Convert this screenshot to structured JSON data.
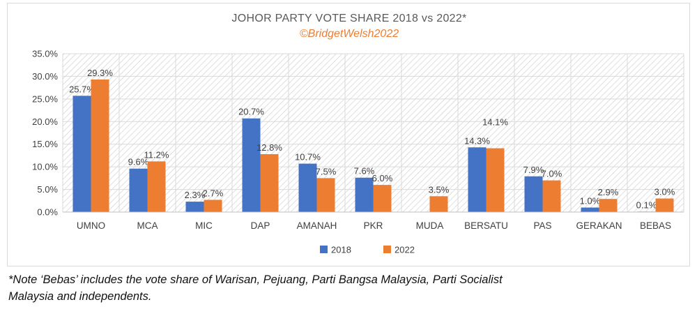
{
  "chart_data": {
    "type": "bar",
    "title": "JOHOR PARTY VOTE SHARE 2018 vs 2022*",
    "subtitle": "©BridgetWelsh2022",
    "categories": [
      "UMNO",
      "MCA",
      "MIC",
      "DAP",
      "AMANAH",
      "PKR",
      "MUDA",
      "BERSATU",
      "PAS",
      "GERAKAN",
      "BEBAS"
    ],
    "series": [
      {
        "name": "2018",
        "color": "#4472c4",
        "values": [
          25.7,
          9.6,
          2.3,
          20.7,
          10.7,
          7.6,
          null,
          14.3,
          7.9,
          1.0,
          0.1
        ],
        "labels": [
          "25.7%",
          "9.6%",
          "2.3%",
          "20.7%",
          "10.7%",
          "7.6%",
          "",
          "14.3%",
          "7.9%",
          "1.0%",
          "0.1%"
        ]
      },
      {
        "name": "2022",
        "color": "#ed7d31",
        "values": [
          29.3,
          11.2,
          2.7,
          12.8,
          7.5,
          6.0,
          3.5,
          14.1,
          7.0,
          2.9,
          3.0
        ],
        "labels": [
          "29.3%",
          "11.2%",
          "2.7%",
          "12.8%",
          "7.5%",
          "6.0%",
          "3.5%",
          "14.1%",
          "7.0%",
          "2.9%",
          "3.0%"
        ]
      }
    ],
    "yticks": [
      "0.0%",
      "5.0%",
      "10.0%",
      "15.0%",
      "20.0%",
      "25.0%",
      "30.0%",
      "35.0%"
    ],
    "ylim": [
      0,
      35
    ],
    "grid": true,
    "legend_position": "bottom",
    "background": "diagonal hatch"
  },
  "footnote": {
    "line1": "*Note ‘Bebas’ includes the vote share of Warisan, Pejuang, Parti Bangsa Malaysia, Parti Socialist",
    "line2": "Malaysia and independents."
  }
}
